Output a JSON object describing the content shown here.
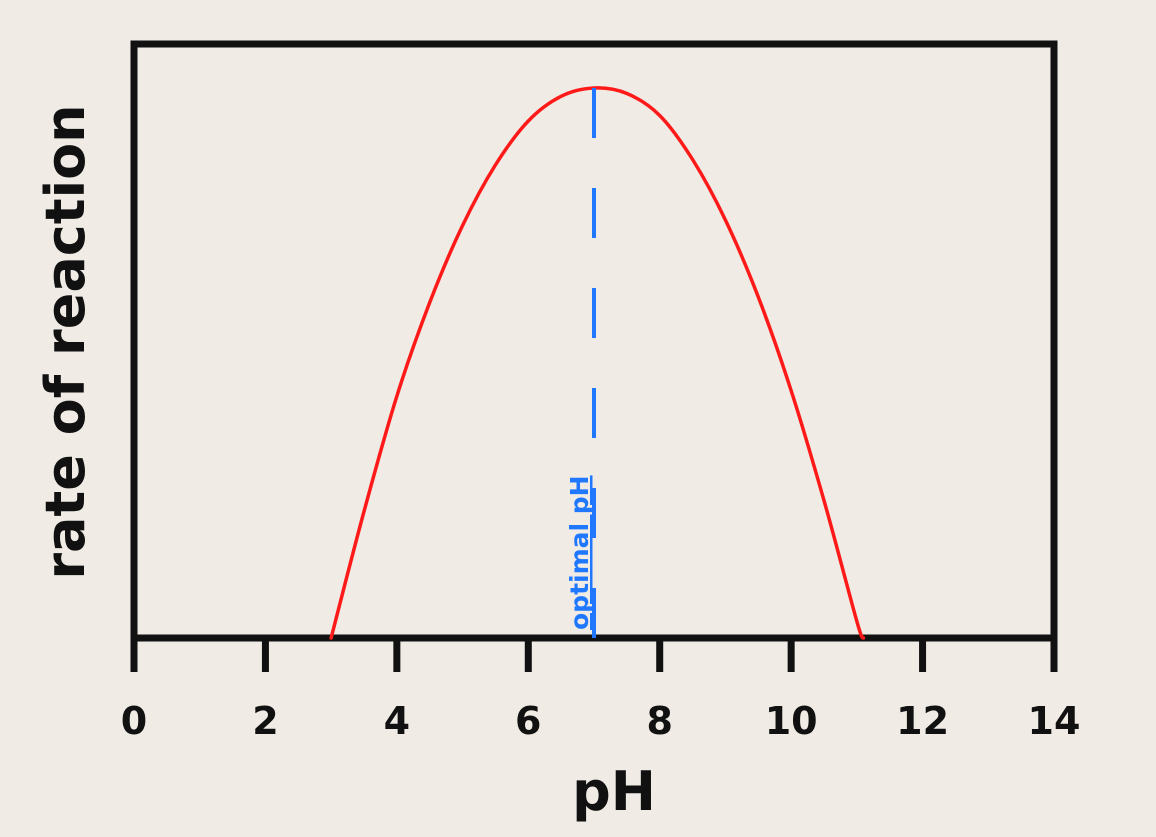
{
  "chart_data": {
    "type": "line",
    "title": "",
    "xlabel": "pH",
    "ylabel": "rate of reaction",
    "xlim": [
      0,
      14
    ],
    "ylim": [
      0,
      1.08
    ],
    "x_ticks": [
      "0",
      "2",
      "4",
      "6",
      "8",
      "10",
      "12",
      "14"
    ],
    "y_ticks": [],
    "grid": false,
    "legend": "none",
    "series": [
      {
        "color": "#ff1a1a",
        "x": [
          3.0,
          3.5,
          4.0,
          4.5,
          5.0,
          5.5,
          6.0,
          6.5,
          7.0,
          7.5,
          8.0,
          8.5,
          9.0,
          9.5,
          10.0,
          10.5,
          11.0,
          11.1
        ],
        "y": [
          0.0,
          0.23,
          0.44,
          0.61,
          0.75,
          0.86,
          0.94,
          0.985,
          1.0,
          0.99,
          0.95,
          0.87,
          0.76,
          0.62,
          0.45,
          0.25,
          0.03,
          0.0
        ]
      }
    ],
    "annotations": [
      {
        "text": "optimal pH",
        "x": 7.0,
        "color": "#1f78ff",
        "style": "dashed-vertical-line"
      }
    ]
  }
}
